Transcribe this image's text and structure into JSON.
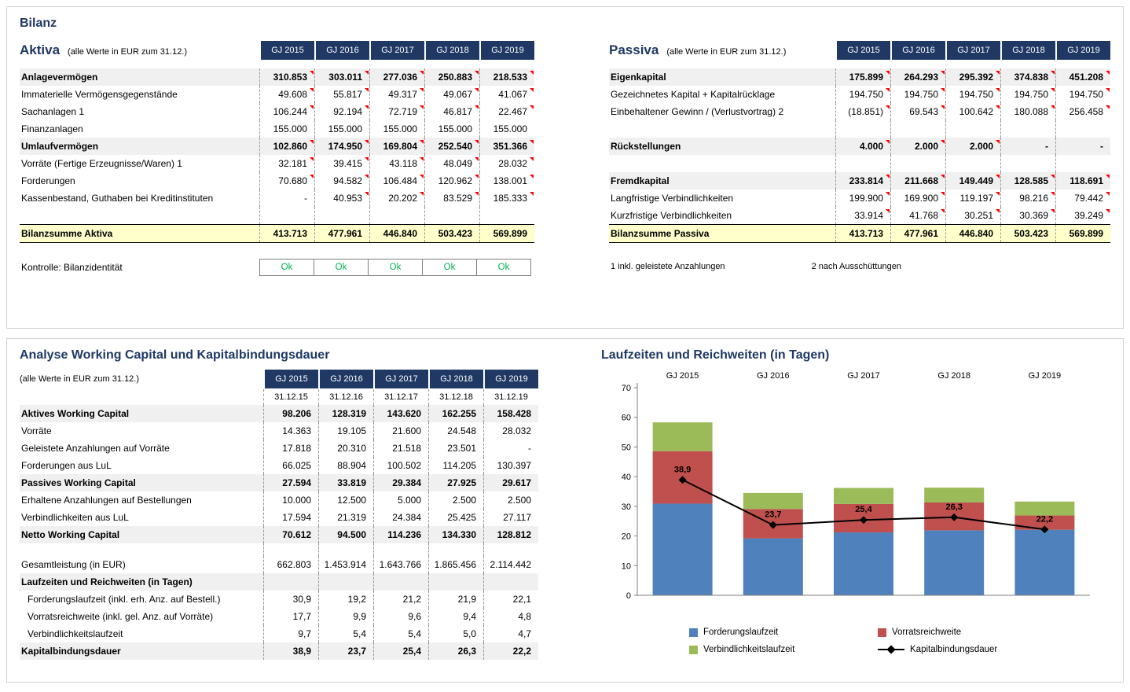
{
  "page": {
    "title": "Bilanz"
  },
  "years": [
    "GJ 2015",
    "GJ 2016",
    "GJ 2017",
    "GJ 2018",
    "GJ 2019"
  ],
  "aktiva": {
    "title": "Aktiva",
    "note": "(alle Werte in EUR zum 31.12.)",
    "rows": [
      {
        "label": "Anlagevermögen",
        "bold": true,
        "shaded": true,
        "marker": true,
        "values": [
          "310.853",
          "303.011",
          "277.036",
          "250.883",
          "218.533"
        ]
      },
      {
        "label": "Immaterielle Vermögensgegenstände",
        "marker": true,
        "values": [
          "49.608",
          "55.817",
          "49.317",
          "49.067",
          "41.067"
        ]
      },
      {
        "label": "Sachanlagen 1",
        "marker": true,
        "values": [
          "106.244",
          "92.194",
          "72.719",
          "46.817",
          "22.467"
        ]
      },
      {
        "label": "Finanzanlagen",
        "values": [
          "155.000",
          "155.000",
          "155.000",
          "155.000",
          "155.000"
        ]
      },
      {
        "label": "Umlaufvermögen",
        "bold": true,
        "shaded": true,
        "marker": true,
        "values": [
          "102.860",
          "174.950",
          "169.804",
          "252.540",
          "351.366"
        ]
      },
      {
        "label": "Vorräte (Fertige Erzeugnisse/Waren) 1",
        "marker": true,
        "values": [
          "32.181",
          "39.415",
          "43.118",
          "48.049",
          "28.032"
        ]
      },
      {
        "label": "Forderungen",
        "marker": true,
        "values": [
          "70.680",
          "94.582",
          "106.484",
          "120.962",
          "138.001"
        ]
      },
      {
        "label": "Kassenbestand, Guthaben bei Kreditinstituten",
        "marker": true,
        "values": [
          "-",
          "40.953",
          "20.202",
          "83.529",
          "185.333"
        ]
      },
      {
        "spacer": true
      },
      {
        "label": "Bilanzsumme Aktiva",
        "total": true,
        "values": [
          "413.713",
          "477.961",
          "446.840",
          "503.423",
          "569.899"
        ]
      }
    ],
    "kontrolle": {
      "label": "Kontrolle: Bilanzidentität",
      "values": [
        "Ok",
        "Ok",
        "Ok",
        "Ok",
        "Ok"
      ]
    }
  },
  "passiva": {
    "title": "Passiva",
    "note": "(alle Werte in EUR zum 31.12.)",
    "rows": [
      {
        "label": "Eigenkapital",
        "bold": true,
        "shaded": true,
        "marker": true,
        "values": [
          "175.899",
          "264.293",
          "295.392",
          "374.838",
          "451.208"
        ]
      },
      {
        "label": "Gezeichnetes Kapital + Kapitalrücklage",
        "marker": true,
        "values": [
          "194.750",
          "194.750",
          "194.750",
          "194.750",
          "194.750"
        ]
      },
      {
        "label": "Einbehaltener Gewinn / (Verlustvortrag) 2",
        "marker": true,
        "values": [
          "(18.851)",
          "69.543",
          "100.642",
          "180.088",
          "256.458"
        ]
      },
      {
        "spacer": true
      },
      {
        "label": "Rückstellungen",
        "bold": true,
        "shaded": true,
        "marker": true,
        "values": [
          "4.000",
          "2.000",
          "2.000",
          "-",
          "-"
        ]
      },
      {
        "spacer": true
      },
      {
        "label": "Fremdkapital",
        "bold": true,
        "shaded": true,
        "marker": true,
        "values": [
          "233.814",
          "211.668",
          "149.449",
          "128.585",
          "118.691"
        ]
      },
      {
        "label": "Langfristige Verbindlichkeiten",
        "marker": true,
        "values": [
          "199.900",
          "169.900",
          "119.197",
          "98.216",
          "79.442"
        ]
      },
      {
        "label": "Kurzfristige Verbindlichkeiten",
        "marker": true,
        "values": [
          "33.914",
          "41.768",
          "30.251",
          "30.369",
          "39.249"
        ]
      },
      {
        "label": "Bilanzsumme Passiva",
        "total": true,
        "values": [
          "413.713",
          "477.961",
          "446.840",
          "503.423",
          "569.899"
        ]
      }
    ],
    "footnotes": [
      "1 inkl. geleistete Anzahlungen",
      "2 nach Ausschüttungen"
    ]
  },
  "working_capital": {
    "title": "Analyse Working Capital und Kapitalbindungsdauer",
    "note": "(alle Werte in EUR zum 31.12.)",
    "dates": [
      "31.12.15",
      "31.12.16",
      "31.12.17",
      "31.12.18",
      "31.12.19"
    ],
    "rows": [
      {
        "label": "Aktives Working Capital",
        "bold": true,
        "shaded": true,
        "values": [
          "98.206",
          "128.319",
          "143.620",
          "162.255",
          "158.428"
        ]
      },
      {
        "label": "Vorräte",
        "values": [
          "14.363",
          "19.105",
          "21.600",
          "24.548",
          "28.032"
        ]
      },
      {
        "label": "Geleistete Anzahlungen auf Vorräte",
        "values": [
          "17.818",
          "20.310",
          "21.518",
          "23.501",
          "-"
        ]
      },
      {
        "label": "Forderungen aus LuL",
        "values": [
          "66.025",
          "88.904",
          "100.502",
          "114.205",
          "130.397"
        ]
      },
      {
        "label": "Passives Working Capital",
        "bold": true,
        "shaded": true,
        "values": [
          "27.594",
          "33.819",
          "29.384",
          "27.925",
          "29.617"
        ]
      },
      {
        "label": "Erhaltene Anzahlungen auf Bestellungen",
        "values": [
          "10.000",
          "12.500",
          "5.000",
          "2.500",
          "2.500"
        ]
      },
      {
        "label": "Verbindlichkeiten aus LuL",
        "values": [
          "17.594",
          "21.319",
          "24.384",
          "25.425",
          "27.117"
        ]
      },
      {
        "label": "Netto Working Capital",
        "bold": true,
        "shaded": true,
        "values": [
          "70.612",
          "94.500",
          "114.236",
          "134.330",
          "128.812"
        ]
      },
      {
        "spacer": true,
        "size": "sm"
      },
      {
        "label": "Gesamtleistung (in EUR)",
        "values": [
          "662.803",
          "1.453.914",
          "1.643.766",
          "1.865.456",
          "2.114.442"
        ]
      },
      {
        "label": "Laufzeiten und Reichweiten (in Tagen)",
        "bold": true,
        "shaded": true,
        "values": [
          "",
          "",
          "",
          "",
          ""
        ]
      },
      {
        "label": "Forderungslaufzeit (inkl. erh. Anz. auf Bestell.)",
        "indent": true,
        "values": [
          "30,9",
          "19,2",
          "21,2",
          "21,9",
          "22,1"
        ]
      },
      {
        "label": "Vorratsreichweite (inkl. gel. Anz. auf Vorräte)",
        "indent": true,
        "values": [
          "17,7",
          "9,9",
          "9,6",
          "9,4",
          "4,8"
        ]
      },
      {
        "label": "Verbindlichkeitslaufzeit",
        "indent": true,
        "values": [
          "9,7",
          "5,4",
          "5,4",
          "5,0",
          "4,7"
        ]
      },
      {
        "label": "Kapitalbindungsdauer",
        "bold": true,
        "shaded": true,
        "values": [
          "38,9",
          "23,7",
          "25,4",
          "26,3",
          "22,2"
        ]
      }
    ]
  },
  "chart_data": {
    "type": "bar",
    "subtype": "stacked-with-line",
    "title": "Laufzeiten und Reichweiten (in Tagen)",
    "categories": [
      "GJ 2015",
      "GJ 2016",
      "GJ 2017",
      "GJ 2018",
      "GJ 2019"
    ],
    "series": [
      {
        "name": "Forderungslaufzeit",
        "type": "bar",
        "color": "#4F81BD",
        "values": [
          30.9,
          19.2,
          21.2,
          21.9,
          22.1
        ]
      },
      {
        "name": "Vorratsreichweite",
        "type": "bar",
        "color": "#C0504D",
        "values": [
          17.7,
          9.9,
          9.6,
          9.4,
          4.8
        ]
      },
      {
        "name": "Verbindlichkeitslaufzeit",
        "type": "bar",
        "color": "#9BBB59",
        "values": [
          9.7,
          5.4,
          5.4,
          5.0,
          4.7
        ]
      },
      {
        "name": "Kapitalbindungsdauer",
        "type": "line",
        "color": "#000000",
        "values": [
          38.9,
          23.7,
          25.4,
          26.3,
          22.2
        ],
        "point_labels": [
          "38,9",
          "23,7",
          "25,4",
          "26,3",
          "22,2"
        ]
      }
    ],
    "ylim": [
      0,
      70
    ],
    "ytick_step": 10,
    "grid": false,
    "legend_position": "bottom",
    "category_label_position": "top",
    "accent_colors": {
      "header_navy": "#1F3864",
      "total_yellow": "#FFFFCC",
      "ok_green": "#00B050",
      "marker_red": "#FF0000"
    }
  }
}
